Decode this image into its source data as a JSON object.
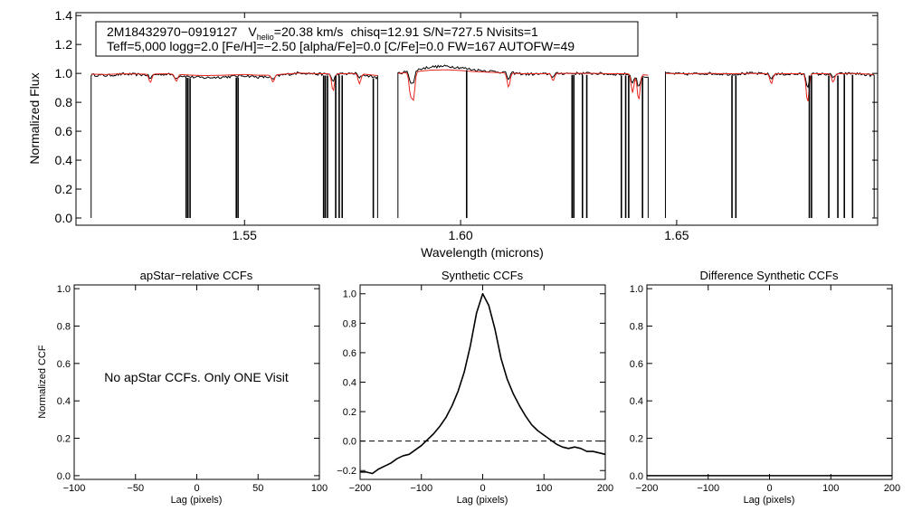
{
  "chart_data": [
    {
      "id": "spectrum",
      "type": "line",
      "xlabel": "Wavelength (microns)",
      "ylabel": "Normalized Flux",
      "xlim": [
        1.511,
        1.6965
      ],
      "ylim": [
        -0.05,
        1.42
      ],
      "xticks": [
        {
          "v": 1.55,
          "label": "1.55"
        },
        {
          "v": 1.6,
          "label": "1.60"
        },
        {
          "v": 1.65,
          "label": "1.65"
        }
      ],
      "yticks": [
        {
          "v": 0.0,
          "label": "0.0"
        },
        {
          "v": 0.2,
          "label": "0.2"
        },
        {
          "v": 0.4,
          "label": "0.4"
        },
        {
          "v": 0.6,
          "label": "0.6"
        },
        {
          "v": 0.8,
          "label": "0.8"
        },
        {
          "v": 1.0,
          "label": "1.0"
        },
        {
          "v": 1.2,
          "label": "1.2"
        },
        {
          "v": 1.4,
          "label": "1.4"
        }
      ],
      "info_line1": {
        "star": "2M18432970−0919127",
        "v_label": "V",
        "v_sub": "helio",
        "v_value": "=20.38 km/s",
        "rest": "chisq=12.91  S/N=727.5  Nvisits=1"
      },
      "info_line2": "Teff=5,000 logg=2.0 [Fe/H]=−2.50 [alpha/Fe]=0.0 [C/Fe]=0.0 FW=167 AUTOFW=49",
      "series": [
        {
          "name": "observed",
          "color": "#000000"
        },
        {
          "name": "model",
          "color": "#e8261e"
        }
      ],
      "chips": [
        [
          1.5145,
          1.5808
        ],
        [
          1.5855,
          1.6434
        ],
        [
          1.6474,
          1.6957
        ]
      ],
      "chip_levels": [
        [
          [
            1.5145,
            0.99
          ],
          [
            1.518,
            0.985
          ],
          [
            1.522,
            0.995
          ],
          [
            1.527,
            0.99
          ],
          [
            1.532,
            0.995
          ],
          [
            1.538,
            0.975
          ],
          [
            1.541,
            0.97
          ],
          [
            1.545,
            0.975
          ],
          [
            1.55,
            0.985
          ],
          [
            1.553,
            0.975
          ],
          [
            1.556,
            0.975
          ],
          [
            1.559,
            0.99
          ],
          [
            1.563,
            1.005
          ],
          [
            1.567,
            0.995
          ],
          [
            1.572,
            0.995
          ],
          [
            1.576,
            1.0
          ],
          [
            1.5808,
            0.97
          ]
        ],
        [
          [
            1.5855,
            1.0
          ],
          [
            1.589,
            1.02
          ],
          [
            1.593,
            1.045
          ],
          [
            1.597,
            1.05
          ],
          [
            1.6,
            1.04
          ],
          [
            1.603,
            1.025
          ],
          [
            1.607,
            1.015
          ],
          [
            1.611,
            1.005
          ],
          [
            1.615,
            0.995
          ],
          [
            1.619,
            0.995
          ],
          [
            1.623,
            1.0
          ],
          [
            1.627,
            1.0
          ],
          [
            1.631,
            1.0
          ],
          [
            1.635,
            0.995
          ],
          [
            1.639,
            0.995
          ],
          [
            1.6434,
            0.975
          ]
        ],
        [
          [
            1.6474,
            1.0
          ],
          [
            1.652,
            0.995
          ],
          [
            1.657,
            1.0
          ],
          [
            1.662,
            0.995
          ],
          [
            1.667,
            1.0
          ],
          [
            1.672,
            0.995
          ],
          [
            1.677,
            0.995
          ],
          [
            1.682,
            0.995
          ],
          [
            1.687,
            0.995
          ],
          [
            1.691,
            1.0
          ],
          [
            1.6957,
            0.985
          ]
        ]
      ],
      "model_lines": [
        [
          1.5282,
          0.06
        ],
        [
          1.5342,
          0.05
        ],
        [
          1.5566,
          0.05
        ],
        [
          1.5705,
          0.12
        ],
        [
          1.5766,
          0.07
        ],
        [
          1.5884,
          0.15
        ],
        [
          1.5891,
          0.18
        ],
        [
          1.6111,
          0.1
        ],
        [
          1.6214,
          0.05
        ],
        [
          1.6398,
          0.13
        ],
        [
          1.6412,
          0.18
        ],
        [
          1.6719,
          0.07
        ],
        [
          1.6803,
          0.2
        ],
        [
          1.6862,
          0.06
        ]
      ],
      "bad_pixels": [
        1.5365,
        1.5369,
        1.5374,
        1.5481,
        1.5485,
        1.5683,
        1.5687,
        1.5692,
        1.5711,
        1.5719,
        1.5726,
        1.5798,
        1.6014,
        1.6258,
        1.6262,
        1.6282,
        1.6292,
        1.6372,
        1.6382,
        1.6389,
        1.6421,
        1.6628,
        1.6637,
        1.6807,
        1.6812,
        1.6852,
        1.6873,
        1.6888,
        1.6907
      ]
    },
    {
      "id": "apstar",
      "type": "line",
      "title": "apStar−relative CCFs",
      "xlabel": "Lag (pixels)",
      "ylabel": "Normalized CCF",
      "xlim": [
        -100,
        100
      ],
      "ylim": [
        -0.02,
        1.02
      ],
      "xticks": [
        {
          "v": -100,
          "label": "−100"
        },
        {
          "v": -50,
          "label": "−50"
        },
        {
          "v": 0,
          "label": "0"
        },
        {
          "v": 50,
          "label": "50"
        },
        {
          "v": 100,
          "label": "100"
        }
      ],
      "yticks": [
        {
          "v": 0.0,
          "label": "0.0"
        },
        {
          "v": 0.2,
          "label": "0.2"
        },
        {
          "v": 0.4,
          "label": "0.4"
        },
        {
          "v": 0.6,
          "label": "0.6"
        },
        {
          "v": 0.8,
          "label": "0.8"
        },
        {
          "v": 1.0,
          "label": "1.0"
        }
      ],
      "annotation": "No apStar CCFs.  Only ONE Visit",
      "series": []
    },
    {
      "id": "synthetic",
      "type": "line",
      "title": "Synthetic CCFs",
      "xlabel": "Lag (pixels)",
      "xlim": [
        -200,
        200
      ],
      "ylim": [
        -0.26,
        1.06
      ],
      "xticks": [
        {
          "v": -200,
          "label": "−200"
        },
        {
          "v": -100,
          "label": "−100"
        },
        {
          "v": 0,
          "label": "0"
        },
        {
          "v": 100,
          "label": "100"
        },
        {
          "v": 200,
          "label": "200"
        }
      ],
      "yticks": [
        {
          "v": -0.2,
          "label": "−0.2"
        },
        {
          "v": 0.0,
          "label": "0.0"
        },
        {
          "v": 0.2,
          "label": "0.2"
        },
        {
          "v": 0.4,
          "label": "0.4"
        },
        {
          "v": 0.6,
          "label": "0.6"
        },
        {
          "v": 0.8,
          "label": "0.8"
        },
        {
          "v": 1.0,
          "label": "1.0"
        }
      ],
      "reference_line": 0.0,
      "series": [
        {
          "name": "synthetic CCF",
          "x": [
            -200,
            -190,
            -180,
            -170,
            -160,
            -150,
            -140,
            -130,
            -120,
            -110,
            -100,
            -90,
            -80,
            -70,
            -60,
            -50,
            -40,
            -30,
            -20,
            -10,
            0,
            10,
            20,
            30,
            40,
            50,
            60,
            70,
            80,
            90,
            100,
            110,
            120,
            130,
            140,
            150,
            160,
            170,
            180,
            190,
            200
          ],
          "y": [
            -0.21,
            -0.21,
            -0.22,
            -0.19,
            -0.17,
            -0.15,
            -0.12,
            -0.1,
            -0.09,
            -0.06,
            -0.03,
            0.01,
            0.05,
            0.1,
            0.16,
            0.24,
            0.34,
            0.47,
            0.65,
            0.87,
            1.0,
            0.92,
            0.76,
            0.56,
            0.42,
            0.32,
            0.24,
            0.17,
            0.11,
            0.07,
            0.04,
            0.01,
            -0.02,
            -0.04,
            -0.05,
            -0.04,
            -0.05,
            -0.07,
            -0.07,
            -0.08,
            -0.09
          ]
        }
      ]
    },
    {
      "id": "difference",
      "type": "line",
      "title": "Difference Synthetic CCFs",
      "xlabel": "Lag (pixels)",
      "xlim": [
        -200,
        200
      ],
      "ylim": [
        -0.02,
        1.02
      ],
      "xticks": [
        {
          "v": -200,
          "label": "−200"
        },
        {
          "v": -100,
          "label": "−100"
        },
        {
          "v": 0,
          "label": "0"
        },
        {
          "v": 100,
          "label": "100"
        },
        {
          "v": 200,
          "label": "200"
        }
      ],
      "yticks": [
        {
          "v": 0.0,
          "label": "0.0"
        },
        {
          "v": 0.2,
          "label": "0.2"
        },
        {
          "v": 0.4,
          "label": "0.4"
        },
        {
          "v": 0.6,
          "label": "0.6"
        },
        {
          "v": 0.8,
          "label": "0.8"
        },
        {
          "v": 1.0,
          "label": "1.0"
        }
      ],
      "series": [
        {
          "name": "difference CCF",
          "x": [
            -200,
            200
          ],
          "y": [
            0.0,
            0.0
          ]
        }
      ]
    }
  ]
}
